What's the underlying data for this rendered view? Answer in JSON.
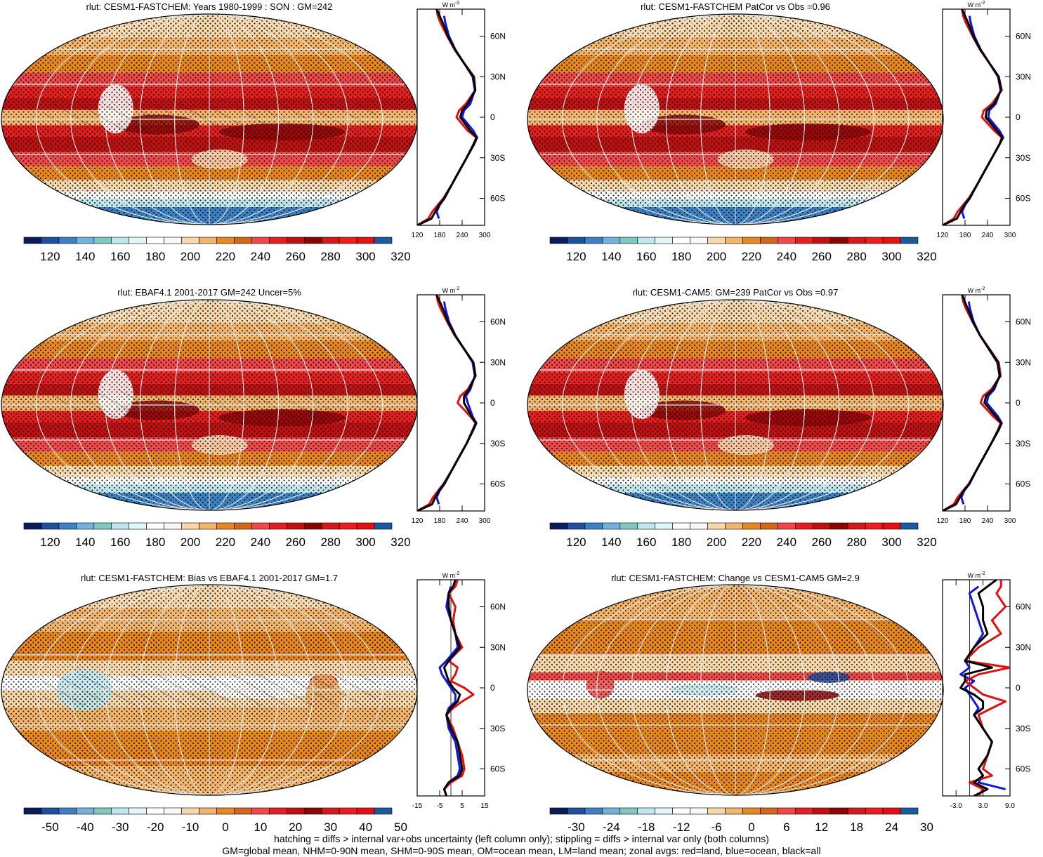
{
  "palette": [
    "#0a1c5c",
    "#1f4fa0",
    "#3b82c4",
    "#74b2de",
    "#7fc8c0",
    "#bfe8ee",
    "#e2f5f8",
    "#ffffff",
    "#f8f8f8",
    "#f7d8ab",
    "#f2b56a",
    "#e6881f",
    "#d4661c",
    "#f04848",
    "#e61e1e",
    "#c01010",
    "#8c0505",
    "#d41a1a",
    "#f01c1c",
    "#e51010",
    "#1b5a9e"
  ],
  "line_colors": {
    "land": "#e01010",
    "ocean": "#1414e0",
    "all": "#000000"
  },
  "zonal_axis": {
    "unit_main": "W m",
    "unit_sup": "-2",
    "lat_labels": [
      "60N",
      "30N",
      "0",
      "30S",
      "60S"
    ],
    "lat_values": [
      60,
      30,
      0,
      -30,
      -60
    ],
    "lat_range": [
      -80,
      80
    ]
  },
  "chart_data": [
    {
      "type": "heatmap",
      "title": "rlut: CESM1-FASTCHEM: Years 1980-1999 : SON : GM=242",
      "colorbar_labels": [
        "120",
        "140",
        "160",
        "180",
        "200",
        "220",
        "240",
        "260",
        "280",
        "300",
        "320"
      ],
      "zonal_xlim": [
        120,
        300
      ],
      "zonal_ticks": [
        "120",
        "180",
        "240",
        "300"
      ],
      "zonal_tick_values": [
        120,
        180,
        240,
        300
      ],
      "zonal_ref": null,
      "zonal_series": {
        "lat": [
          -80,
          -75,
          -70,
          -65,
          -60,
          -50,
          -40,
          -30,
          -20,
          -15,
          -10,
          0,
          5,
          10,
          20,
          30,
          40,
          50,
          60,
          70,
          75,
          80
        ],
        "land": [
          120,
          150,
          160,
          175,
          190,
          212,
          232,
          252,
          270,
          278,
          255,
          225,
          232,
          250,
          275,
          272,
          245,
          220,
          200,
          182,
          175,
          172
        ],
        "ocean": [
          null,
          178,
          172,
          180,
          193,
          212,
          232,
          252,
          272,
          280,
          270,
          240,
          245,
          262,
          274,
          268,
          245,
          222,
          205,
          195,
          192,
          null
        ],
        "all": [
          120,
          158,
          168,
          178,
          192,
          212,
          232,
          252,
          271,
          279,
          262,
          235,
          240,
          255,
          275,
          270,
          245,
          221,
          202,
          188,
          180,
          172
        ]
      }
    },
    {
      "type": "heatmap",
      "title": "rlut: CESM1-FASTCHEM PatCor vs Obs =0.96",
      "colorbar_labels": [
        "120",
        "140",
        "160",
        "180",
        "200",
        "220",
        "240",
        "260",
        "280",
        "300",
        "320"
      ],
      "zonal_xlim": [
        120,
        300
      ],
      "zonal_ticks": [
        "120",
        "180",
        "240",
        "300"
      ],
      "zonal_tick_values": [
        120,
        180,
        240,
        300
      ],
      "zonal_ref": null,
      "zonal_series": {
        "lat": [
          -80,
          -75,
          -70,
          -65,
          -60,
          -50,
          -40,
          -30,
          -20,
          -15,
          -10,
          0,
          5,
          10,
          20,
          30,
          40,
          50,
          60,
          70,
          75,
          80
        ],
        "land": [
          120,
          150,
          160,
          175,
          190,
          212,
          232,
          252,
          272,
          278,
          258,
          225,
          230,
          252,
          278,
          270,
          245,
          220,
          200,
          182,
          175,
          172
        ],
        "ocean": [
          null,
          178,
          172,
          180,
          193,
          212,
          232,
          252,
          272,
          282,
          272,
          242,
          245,
          262,
          275,
          268,
          245,
          222,
          205,
          195,
          192,
          null
        ],
        "all": [
          120,
          158,
          168,
          178,
          192,
          212,
          232,
          252,
          272,
          280,
          265,
          235,
          238,
          258,
          276,
          270,
          245,
          221,
          202,
          188,
          180,
          172
        ]
      }
    },
    {
      "type": "heatmap",
      "title": "rlut: EBAF4.1 2001-2017 GM=242 Uncer=5%",
      "colorbar_labels": [
        "120",
        "140",
        "160",
        "180",
        "200",
        "220",
        "240",
        "260",
        "280",
        "300",
        "320"
      ],
      "zonal_xlim": [
        120,
        300
      ],
      "zonal_ticks": [
        "120",
        "180",
        "240",
        "300"
      ],
      "zonal_tick_values": [
        120,
        180,
        240,
        300
      ],
      "zonal_ref": null,
      "zonal_series": {
        "lat": [
          -80,
          -75,
          -70,
          -65,
          -60,
          -50,
          -40,
          -30,
          -20,
          -15,
          -10,
          0,
          5,
          10,
          20,
          30,
          40,
          50,
          60,
          70,
          75,
          80
        ],
        "land": [
          120,
          152,
          162,
          176,
          190,
          212,
          232,
          252,
          268,
          276,
          262,
          228,
          235,
          255,
          276,
          270,
          245,
          220,
          200,
          182,
          175,
          172
        ],
        "ocean": [
          null,
          178,
          172,
          180,
          193,
          212,
          232,
          252,
          270,
          278,
          268,
          255,
          250,
          262,
          274,
          268,
          245,
          222,
          205,
          195,
          192,
          null
        ],
        "all": [
          120,
          160,
          168,
          178,
          192,
          212,
          232,
          252,
          269,
          277,
          265,
          245,
          245,
          258,
          275,
          270,
          245,
          221,
          202,
          188,
          180,
          172
        ]
      }
    },
    {
      "type": "heatmap",
      "title": "rlut: CESM1-CAM5: GM=239 PatCor vs Obs =0.97",
      "colorbar_labels": [
        "120",
        "140",
        "160",
        "180",
        "200",
        "220",
        "240",
        "260",
        "280",
        "300",
        "320"
      ],
      "zonal_xlim": [
        120,
        300
      ],
      "zonal_ticks": [
        "120",
        "180",
        "240",
        "300"
      ],
      "zonal_tick_values": [
        120,
        180,
        240,
        300
      ],
      "zonal_ref": null,
      "zonal_series": {
        "lat": [
          -80,
          -75,
          -70,
          -65,
          -60,
          -50,
          -40,
          -30,
          -20,
          -15,
          -10,
          0,
          5,
          10,
          20,
          30,
          40,
          50,
          60,
          70,
          75,
          80
        ],
        "land": [
          120,
          150,
          160,
          175,
          190,
          210,
          230,
          250,
          268,
          275,
          255,
          222,
          228,
          250,
          275,
          270,
          245,
          220,
          200,
          182,
          175,
          172
        ],
        "ocean": [
          null,
          176,
          170,
          178,
          192,
          210,
          230,
          250,
          270,
          278,
          268,
          238,
          242,
          258,
          272,
          266,
          243,
          220,
          203,
          193,
          190,
          null
        ],
        "all": [
          120,
          156,
          166,
          176,
          191,
          210,
          230,
          250,
          269,
          277,
          262,
          232,
          236,
          254,
          273,
          268,
          244,
          220,
          201,
          187,
          179,
          172
        ]
      }
    },
    {
      "type": "heatmap",
      "title": "rlut: CESM1-FASTCHEM: Bias vs EBAF4.1 2001-2017  GM=1.7",
      "colorbar_labels": [
        "-50",
        "-40",
        "-30",
        "-20",
        "-10",
        "0",
        "10",
        "20",
        "30",
        "40",
        "50"
      ],
      "zonal_xlim": [
        -15,
        15
      ],
      "zonal_ticks": [
        "-15",
        "-5",
        "5",
        "15"
      ],
      "zonal_tick_values": [
        -15,
        -5,
        5,
        15
      ],
      "zonal_ref": 0,
      "zonal_series": {
        "lat": [
          -80,
          -75,
          -70,
          -65,
          -60,
          -50,
          -40,
          -30,
          -20,
          -15,
          -10,
          -5,
          0,
          5,
          10,
          15,
          20,
          30,
          40,
          50,
          60,
          70,
          75,
          80
        ],
        "land": [
          -2,
          -3,
          0,
          5,
          6,
          5,
          3,
          1,
          -2,
          1,
          5,
          10,
          6,
          0,
          2,
          3,
          -1,
          5,
          2,
          1,
          2,
          -1,
          2,
          3
        ],
        "ocean": [
          null,
          -3,
          -1,
          3,
          4,
          3,
          2,
          -1,
          -2,
          -1,
          2,
          2,
          0,
          -2,
          -4,
          -5,
          -2,
          3,
          2,
          0,
          -2,
          -1,
          0,
          null
        ],
        "all": [
          -2,
          -3,
          -1,
          4,
          5,
          4,
          3,
          0,
          -2,
          0,
          3,
          4,
          1,
          -1,
          -2,
          -3,
          -1,
          4,
          2,
          0,
          -1,
          -1,
          1,
          2
        ]
      }
    },
    {
      "type": "heatmap",
      "title": "rlut: CESM1-FASTCHEM: Change vs CESM1-CAM5 GM=2.9",
      "colorbar_labels": [
        "-30",
        "-24",
        "-18",
        "-12",
        "-6",
        "0",
        "6",
        "12",
        "18",
        "24",
        "30"
      ],
      "zonal_xlim": [
        -6.0,
        9.0
      ],
      "zonal_ticks": [
        "-3.0",
        "3.0",
        "9.0"
      ],
      "zonal_tick_values": [
        -3.0,
        3.0,
        9.0
      ],
      "zonal_ref": 0,
      "zonal_series": {
        "lat": [
          -80,
          -75,
          -70,
          -65,
          -60,
          -50,
          -40,
          -30,
          -20,
          -15,
          -10,
          -5,
          0,
          5,
          10,
          15,
          20,
          30,
          40,
          50,
          60,
          70,
          75,
          80
        ],
        "land": [
          2,
          3,
          0,
          5,
          3,
          4,
          5,
          3,
          2,
          5,
          8,
          3,
          1,
          -1,
          2,
          9,
          -1,
          2,
          7,
          5,
          8,
          6,
          7,
          7
        ],
        "ocean": [
          null,
          8,
          2,
          3,
          2,
          4,
          5,
          3,
          1,
          2,
          1,
          0,
          -1,
          1,
          -2,
          0,
          -1,
          1,
          3,
          2,
          1,
          0,
          2,
          null
        ],
        "all": [
          1,
          4,
          1,
          3,
          2,
          4,
          5,
          3,
          1,
          3,
          3,
          1,
          -2,
          -1,
          -1,
          5,
          -1,
          1,
          4,
          3,
          3,
          2,
          4,
          6
        ]
      }
    }
  ],
  "footer": {
    "line1": "hatching = diffs > internal var+obs uncertainty (left column only); stippling = diffs > internal var only (both columns)",
    "line2": "GM=global mean, NHM=0-90N mean, SHM=0-90S mean, OM=ocean mean, LM=land mean; zonal avgs: red=land, blue=ocean, black=all"
  }
}
